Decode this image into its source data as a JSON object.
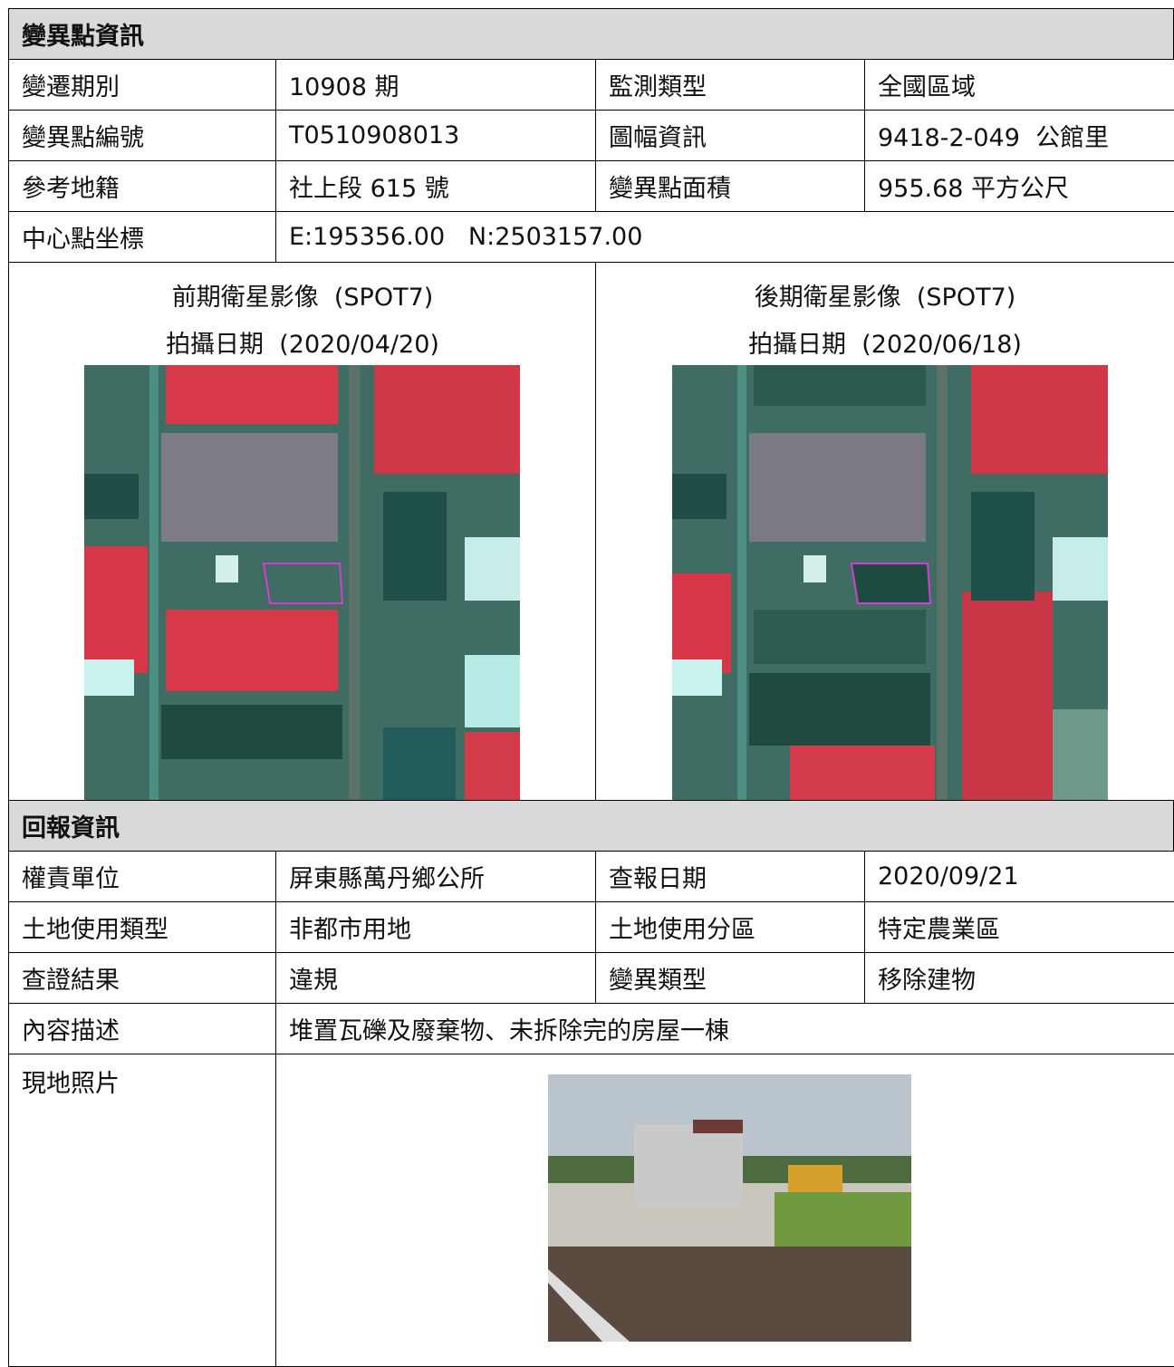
{
  "change_info": {
    "title": "變異點資訊",
    "rows": [
      [
        "變遷期別",
        "10908 期",
        "監測類型",
        "全國區域"
      ],
      [
        "變異點編號",
        "T0510908013",
        "圖幅資訊",
        "9418-2-049  公館里"
      ],
      [
        "參考地籍",
        "社上段 615 號",
        "變異點面積",
        "955.68 平方公尺"
      ]
    ],
    "coordinate": {
      "label": "中心點坐標",
      "value": "E:195356.00   N:2503157.00"
    },
    "images": [
      {
        "caption": "前期衛星影像  (SPOT7)",
        "date": "拍攝日期  (2020/04/20)"
      },
      {
        "caption": "後期衛星影像  (SPOT7)",
        "date": "拍攝日期  (2020/06/18)"
      }
    ]
  },
  "report_info": {
    "title": "回報資訊",
    "rows": [
      [
        "權責單位",
        "屏東縣萬丹鄉公所",
        "查報日期",
        "2020/09/21"
      ],
      [
        "土地使用類型",
        "非都市用地",
        "土地使用分區",
        "特定農業區"
      ],
      [
        "查證結果",
        "違規",
        "變異類型",
        "移除建物"
      ]
    ],
    "description": {
      "label": "內容描述",
      "value": "堆置瓦礫及廢棄物、未拆除完的房屋一棟"
    },
    "photo": {
      "label": "現地照片"
    }
  }
}
